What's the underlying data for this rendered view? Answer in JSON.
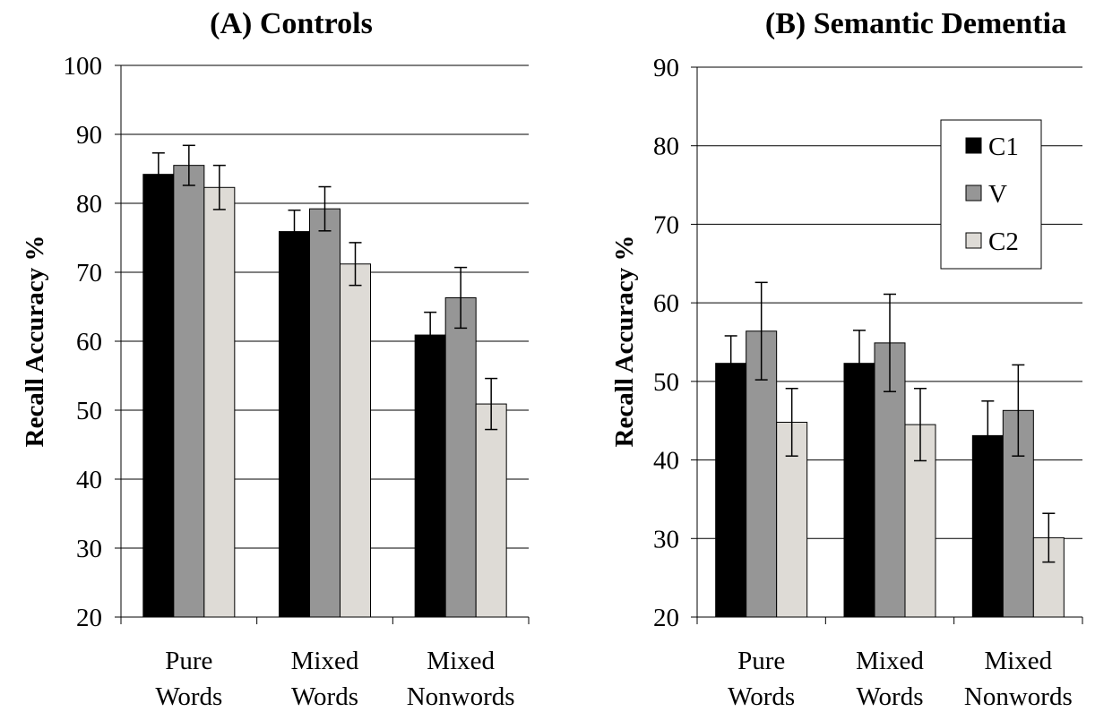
{
  "chart_data": [
    {
      "type": "bar",
      "title": "(A)   Controls",
      "ylabel": "Recall Accuracy %",
      "ylim": [
        20,
        100
      ],
      "yticks": [
        20,
        30,
        40,
        50,
        60,
        70,
        80,
        90,
        100
      ],
      "grid": true,
      "legend": false,
      "categories": [
        [
          "Pure",
          "Words"
        ],
        [
          "Mixed",
          "Words"
        ],
        [
          "Mixed",
          "Nonwords"
        ]
      ],
      "series": [
        {
          "name": "C1",
          "color": "#000000",
          "values": [
            84.2,
            75.9,
            60.9
          ],
          "errors": [
            3.1,
            3.1,
            3.3
          ]
        },
        {
          "name": "V",
          "color": "#969696",
          "values": [
            85.5,
            79.2,
            66.3
          ],
          "errors": [
            2.9,
            3.2,
            4.4
          ]
        },
        {
          "name": "C2",
          "color": "#dedbd6",
          "values": [
            82.3,
            71.2,
            50.9
          ],
          "errors": [
            3.2,
            3.1,
            3.7
          ]
        }
      ]
    },
    {
      "type": "bar",
      "title": "(B)   Semantic Dementia",
      "ylabel": "Recall Accuracy %",
      "ylim": [
        20,
        90
      ],
      "yticks": [
        20,
        30,
        40,
        50,
        60,
        70,
        80,
        90
      ],
      "grid": true,
      "legend": "top-right",
      "categories": [
        [
          "Pure",
          "Words"
        ],
        [
          "Mixed",
          "Words"
        ],
        [
          "Mixed",
          "Nonwords"
        ]
      ],
      "series": [
        {
          "name": "C1",
          "color": "#000000",
          "values": [
            52.3,
            52.3,
            43.1
          ],
          "errors": [
            3.5,
            4.2,
            4.4
          ]
        },
        {
          "name": "V",
          "color": "#969696",
          "values": [
            56.4,
            54.9,
            46.3
          ],
          "errors": [
            6.2,
            6.2,
            5.8
          ]
        },
        {
          "name": "C2",
          "color": "#dedbd6",
          "values": [
            44.8,
            44.5,
            30.1
          ],
          "errors": [
            4.3,
            4.6,
            3.1
          ]
        }
      ]
    }
  ]
}
